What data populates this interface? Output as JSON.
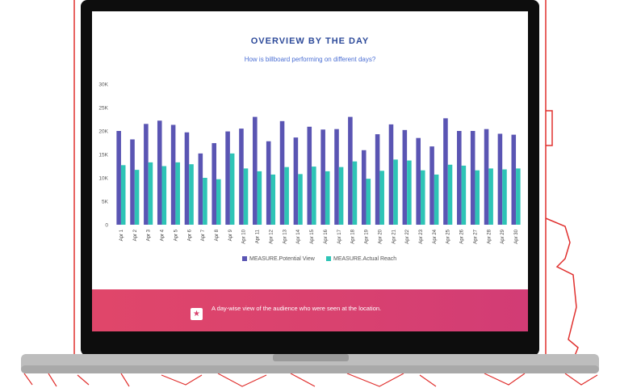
{
  "colors": {
    "potential_view": "#5a55b3",
    "actual_reach": "#2ec4b6",
    "accent": "#e0466a",
    "title": "#2d4a9a"
  },
  "chart_data": {
    "type": "bar",
    "title": "OVERVIEW BY THE DAY",
    "subtitle": "How is billboard performing on different days?",
    "categories": [
      "Apr 1",
      "Apr 2",
      "Apr 3",
      "Apr 4",
      "Apr 5",
      "Apr 6",
      "Apr 7",
      "Apr 8",
      "Apr 9",
      "Apr 10",
      "Apr 11",
      "Apr 12",
      "Apr 13",
      "Apr 14",
      "Apr 15",
      "Apr 16",
      "Apr 17",
      "Apr 18",
      "Apr 19",
      "Apr 20",
      "Apr 21",
      "Apr 22",
      "Apr 23",
      "Apr 24",
      "Apr 25",
      "Apr 26",
      "Apr 27",
      "Apr 28",
      "Apr 29",
      "Apr 30"
    ],
    "series": [
      {
        "name": "MEASURE.Potential View",
        "values": [
          20000,
          18200,
          21500,
          22200,
          21300,
          19700,
          15200,
          17400,
          19900,
          20500,
          23000,
          17800,
          22100,
          18600,
          20900,
          20300,
          20400,
          23000,
          15900,
          19300,
          21400,
          20200,
          18500,
          16700,
          22700,
          20000,
          20000,
          20400,
          19400,
          19200
        ]
      },
      {
        "name": "MEASURE.Actual Reach",
        "values": [
          12700,
          11700,
          13300,
          12500,
          13300,
          12900,
          10000,
          9700,
          15200,
          12000,
          11400,
          10700,
          12300,
          10800,
          12400,
          11400,
          12300,
          13500,
          9800,
          11500,
          13900,
          13700,
          11600,
          10700,
          12800,
          12600,
          11600,
          12000,
          11800,
          12000
        ]
      }
    ],
    "yticks": [
      "0",
      "5K",
      "10K",
      "15K",
      "20K",
      "25K",
      "30K"
    ],
    "ylim": [
      0,
      30000
    ],
    "grid": false,
    "legend": "bottom"
  },
  "footer": {
    "icon": "star-icon",
    "icon_glyph": "★",
    "text": "A day-wise view of the audience who were seen at the location."
  }
}
